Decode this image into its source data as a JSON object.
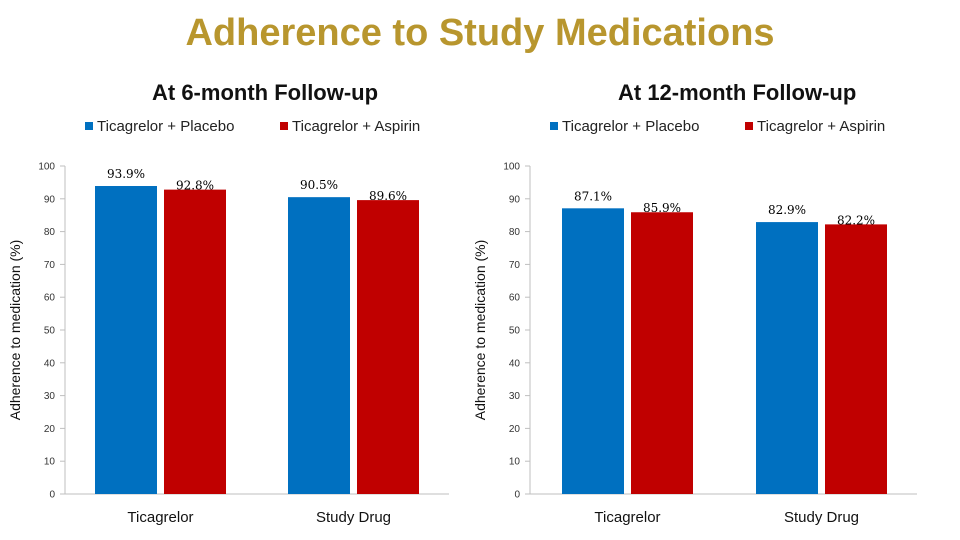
{
  "title": "Adherence to Study Medications",
  "colors": {
    "title": "#B8962E",
    "placebo": "#0070C0",
    "aspirin": "#C00000",
    "axis": "#BFBFBF"
  },
  "chart_data": [
    {
      "type": "bar",
      "title": "At 6-month Follow-up",
      "categories": [
        "Ticagrelor",
        "Study Drug"
      ],
      "series": [
        {
          "name": "Ticagrelor + Placebo",
          "values": [
            93.9,
            90.5
          ],
          "labels": [
            "93.9%",
            "90.5%"
          ]
        },
        {
          "name": "Ticagrelor + Aspirin",
          "values": [
            92.8,
            89.6
          ],
          "labels": [
            "92.8%",
            "89.6%"
          ]
        }
      ],
      "xlabel": "",
      "ylabel": "Adherence to medication (%)",
      "ylim": [
        0,
        100
      ],
      "yticks": [
        0,
        10,
        20,
        30,
        40,
        50,
        60,
        70,
        80,
        90,
        100
      ],
      "legend": "top"
    },
    {
      "type": "bar",
      "title": "At 12-month Follow-up",
      "categories": [
        "Ticagrelor",
        "Study Drug"
      ],
      "series": [
        {
          "name": "Ticagrelor + Placebo",
          "values": [
            87.1,
            82.9
          ],
          "labels": [
            "87.1%",
            "82.9%"
          ]
        },
        {
          "name": "Ticagrelor + Aspirin",
          "values": [
            85.9,
            82.2
          ],
          "labels": [
            "85.9%",
            "82.2%"
          ]
        }
      ],
      "xlabel": "",
      "ylabel": "Adherence to medication (%)",
      "ylim": [
        0,
        100
      ],
      "yticks": [
        0,
        10,
        20,
        30,
        40,
        50,
        60,
        70,
        80,
        90,
        100
      ],
      "legend": "top"
    }
  ]
}
